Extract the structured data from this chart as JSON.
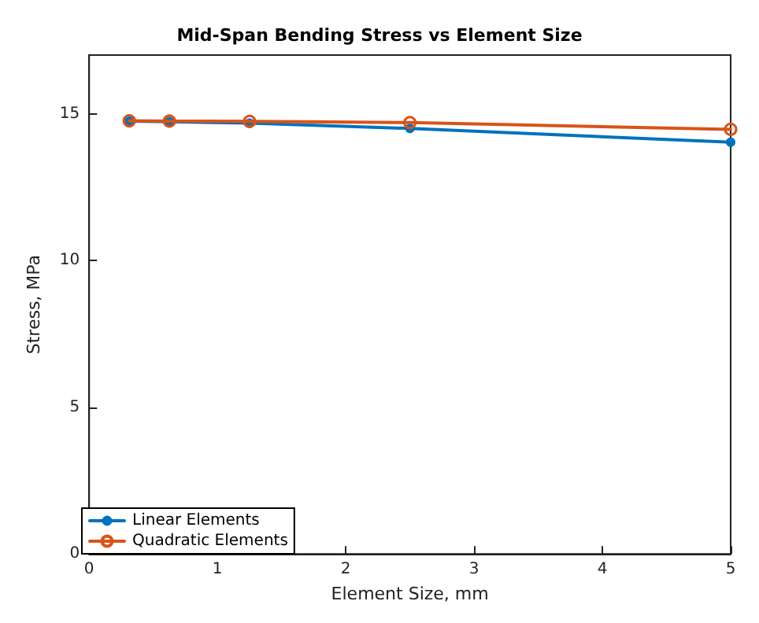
{
  "chart_data": {
    "type": "line",
    "title": "Mid-Span Bending Stress vs Element Size",
    "xlabel": "Element Size, mm",
    "ylabel": "Stress, MPa",
    "x": [
      0.3125,
      0.625,
      1.25,
      2.5,
      5
    ],
    "series": [
      {
        "name": "Linear Elements",
        "color": "#0072bd",
        "values": [
          14.75,
          14.73,
          14.68,
          14.5,
          14.03
        ]
      },
      {
        "name": "Quadratic Elements",
        "color": "#d95319",
        "values": [
          14.76,
          14.75,
          14.74,
          14.7,
          14.47
        ]
      }
    ],
    "xlim": [
      0,
      5
    ],
    "xticks": [
      0,
      1,
      2,
      3,
      4,
      5
    ],
    "ylim": [
      0,
      17
    ],
    "yticks": [
      0,
      5,
      10,
      15
    ],
    "grid": false,
    "legend": "bottom left",
    "marker": "circle",
    "line_style": "solid"
  }
}
